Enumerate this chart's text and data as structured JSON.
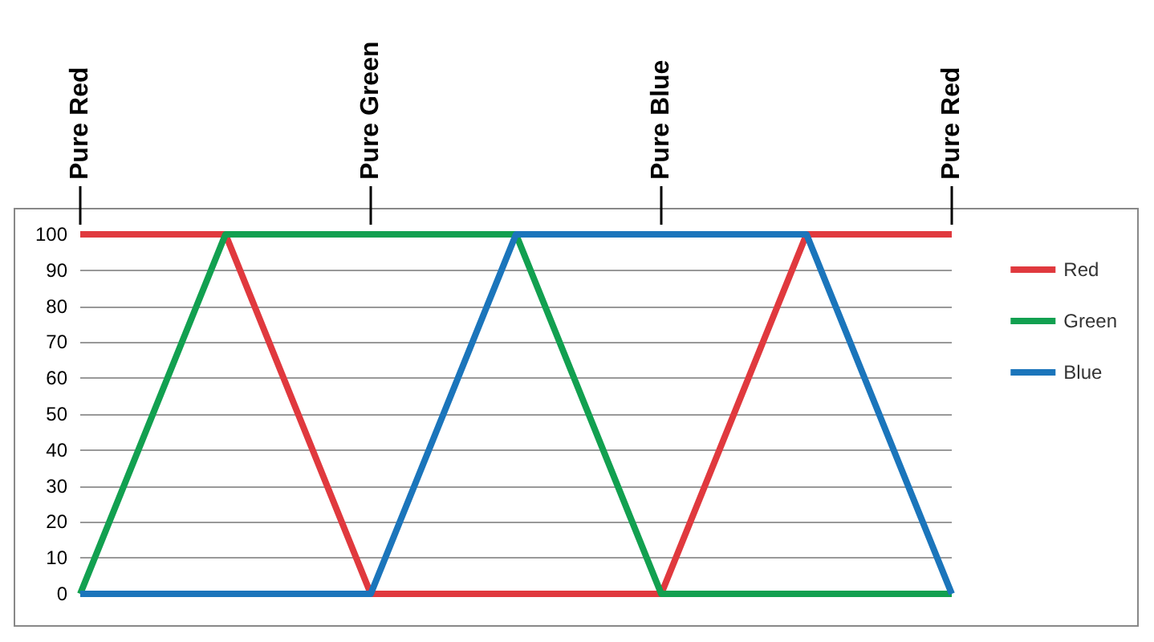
{
  "chart_data": {
    "type": "line",
    "categories": [
      null,
      null,
      null,
      null,
      null,
      null,
      null
    ],
    "series": [
      {
        "name": "Red",
        "color": "#e0393e",
        "values": [
          100,
          100,
          0,
          0,
          0,
          100,
          100
        ]
      },
      {
        "name": "Green",
        "color": "#12a050",
        "values": [
          0,
          100,
          100,
          100,
          0,
          0,
          0
        ]
      },
      {
        "name": "Blue",
        "color": "#1b75bb",
        "values": [
          0,
          0,
          0,
          100,
          100,
          100,
          0
        ]
      }
    ],
    "ylim": [
      0,
      100
    ],
    "yticks": [
      0,
      10,
      20,
      30,
      40,
      50,
      60,
      70,
      80,
      90,
      100
    ],
    "annotations": [
      "Pure Red",
      "Pure Green",
      "Pure Blue",
      "Pure Red"
    ],
    "grid": "y",
    "legend": "right",
    "marker": "none",
    "line_style": "solid"
  }
}
